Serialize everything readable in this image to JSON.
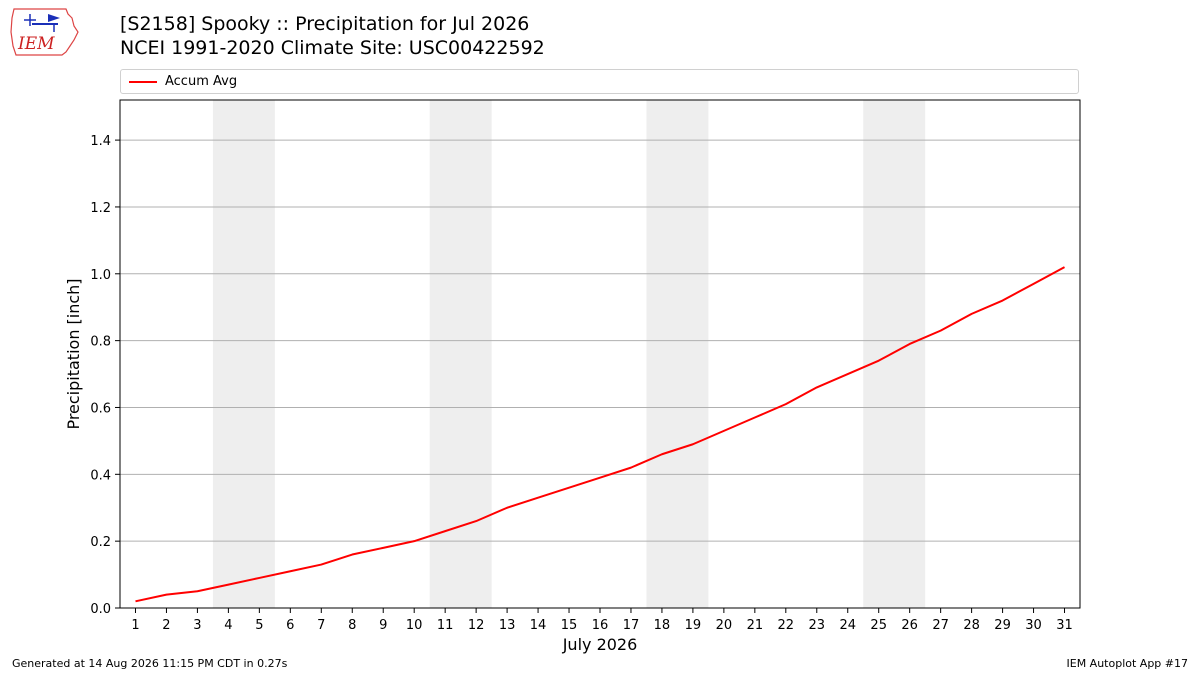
{
  "header": {
    "logo_text": "IEM",
    "title_line1": "[S2158] Spooky :: Precipitation for Jul 2026",
    "title_line2": "NCEI 1991-2020 Climate Site: USC00422592"
  },
  "chart_data": {
    "type": "line",
    "xlabel": "July 2026",
    "ylabel": "Precipitation [inch]",
    "x": [
      1,
      2,
      3,
      4,
      5,
      6,
      7,
      8,
      9,
      10,
      11,
      12,
      13,
      14,
      15,
      16,
      17,
      18,
      19,
      20,
      21,
      22,
      23,
      24,
      25,
      26,
      27,
      28,
      29,
      30,
      31
    ],
    "series": [
      {
        "name": "Accum Avg",
        "color": "#ff0000",
        "values": [
          0.02,
          0.04,
          0.05,
          0.07,
          0.09,
          0.11,
          0.13,
          0.16,
          0.18,
          0.2,
          0.23,
          0.26,
          0.3,
          0.33,
          0.36,
          0.39,
          0.42,
          0.46,
          0.49,
          0.53,
          0.57,
          0.61,
          0.66,
          0.7,
          0.74,
          0.79,
          0.83,
          0.88,
          0.92,
          0.97,
          1.02
        ]
      }
    ],
    "xlim": [
      0.5,
      31.5
    ],
    "ylim": [
      0,
      1.52
    ],
    "yticks": [
      0.0,
      0.2,
      0.4,
      0.6,
      0.8,
      1.0,
      1.2,
      1.4
    ],
    "ytick_labels": [
      "0.0",
      "0.2",
      "0.4",
      "0.6",
      "0.8",
      "1.0",
      "1.2",
      "1.4"
    ],
    "xtick_labels": [
      "1",
      "2",
      "3",
      "4",
      "5",
      "6",
      "7",
      "8",
      "9",
      "10",
      "11",
      "12",
      "13",
      "14",
      "15",
      "16",
      "17",
      "18",
      "19",
      "20",
      "21",
      "22",
      "23",
      "24",
      "25",
      "26",
      "27",
      "28",
      "29",
      "30",
      "31"
    ],
    "weekend_bands": [
      [
        4,
        5
      ],
      [
        11,
        12
      ],
      [
        18,
        19
      ],
      [
        25,
        26
      ]
    ],
    "band_color": "#eeeeee",
    "grid": "horizontal",
    "legend_placement": "top"
  },
  "footer": {
    "left": "Generated at 14 Aug 2026 11:15 PM CDT in 0.27s",
    "right": "IEM Autoplot App #17"
  }
}
